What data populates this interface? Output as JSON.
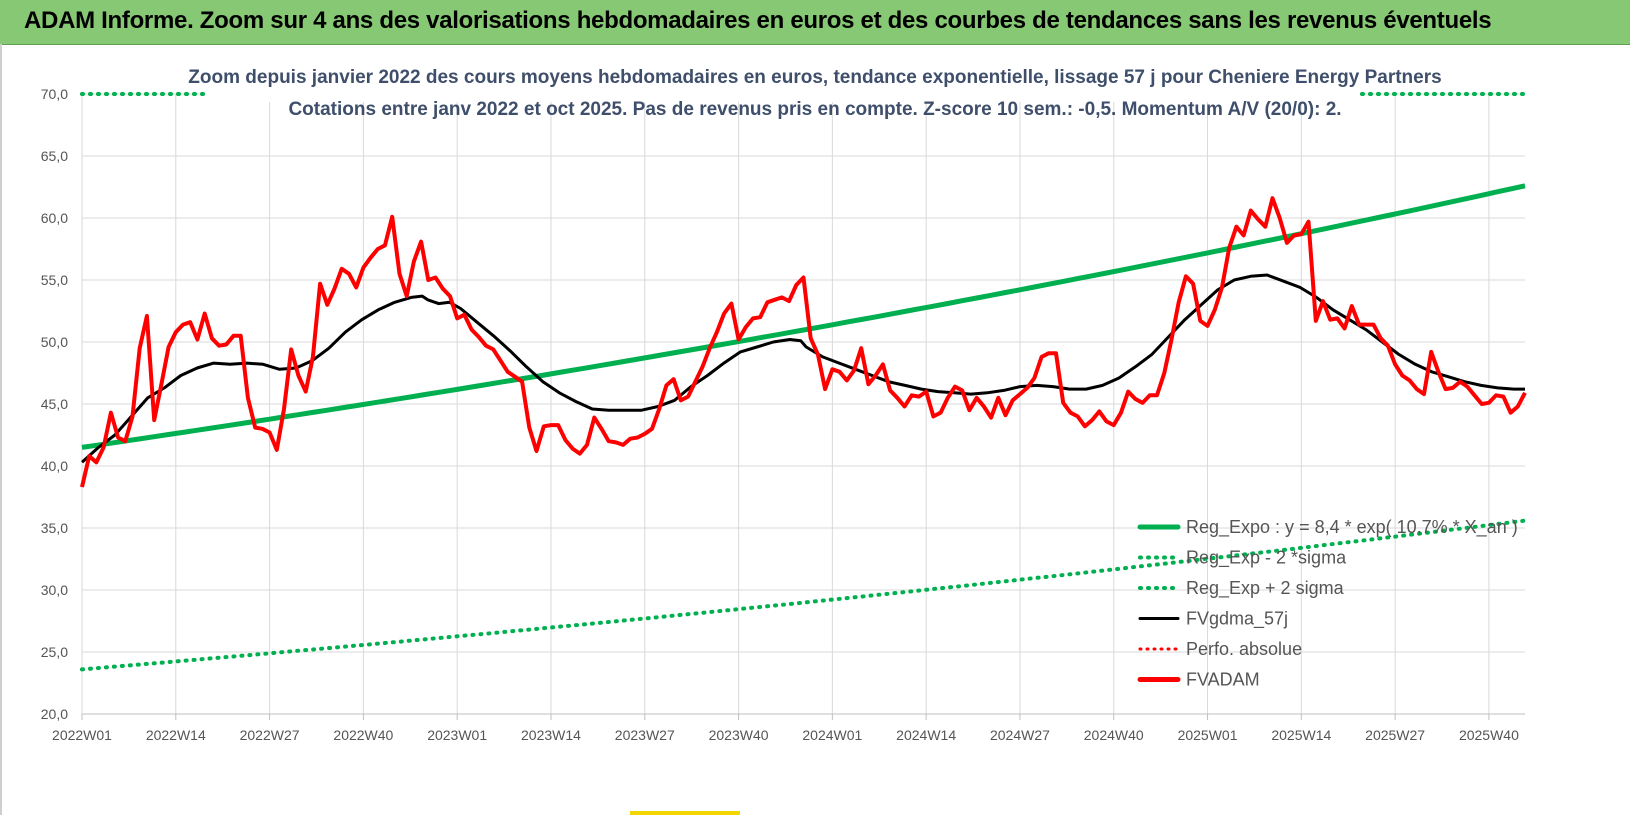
{
  "banner": {
    "title": "ADAM Informe. Zoom sur 4 ans des valorisations hebdomadaires en euros et des courbes de tendances sans les revenus éventuels"
  },
  "chart_data": {
    "type": "line",
    "title_line1": "Zoom depuis janvier 2022 des cours moyens hebdomadaires en euros, tendance exponentielle, lissage 57 j pour Cheniere Energy Partners",
    "title_line2": "Cotations entre janv 2022 et oct 2025. Pas de revenus pris en compte. Z-score 10 sem.: -0,5.  Momentum A/V (20/0): 2.",
    "ylim": [
      20,
      70
    ],
    "y_ticks": [
      "20,0",
      "25,0",
      "30,0",
      "35,0",
      "40,0",
      "45,0",
      "50,0",
      "55,0",
      "60,0",
      "65,0",
      "70,0"
    ],
    "x_ticks": [
      "2022W01",
      "2022W14",
      "2022W27",
      "2022W40",
      "2023W01",
      "2023W14",
      "2023W27",
      "2023W40",
      "2024W01",
      "2024W14",
      "2024W27",
      "2024W40",
      "2025W01",
      "2025W14",
      "2025W27",
      "2025W40"
    ],
    "n_weeks": 200,
    "legend": [
      {
        "name": "Reg_Expo : y = 8,4 * exp( 10,7% * X_an )",
        "style": "solid-green"
      },
      {
        "name": "Reg_Exp - 2 *sigma",
        "style": "dotted-green"
      },
      {
        "name": "Reg_Exp + 2 sigma",
        "style": "dotted-green"
      },
      {
        "name": "FVgdma_57j",
        "style": "solid-black"
      },
      {
        "name": "Perfo. absolue",
        "style": "dotted-red"
      },
      {
        "name": "FVADAM",
        "style": "solid-red"
      }
    ],
    "colors": {
      "expo": "#00b050",
      "sigma": "#00b050",
      "gdma": "#000000",
      "perfo": "#ff0000",
      "adam": "#ff0000",
      "grid": "#d9d9d9"
    },
    "series": [
      {
        "name": "Reg_Expo",
        "start": 41.5,
        "end": 62.6
      },
      {
        "name": "Reg_Exp - 2 *sigma",
        "start": 23.6,
        "end": 35.6
      },
      {
        "name": "Reg_Exp + 2 sigma",
        "start": 70.0,
        "end": 70.0
      },
      {
        "name": "FVgdma_57j",
        "points": [
          [
            0,
            40.3
          ],
          [
            3,
            41.5
          ],
          [
            6,
            42.5
          ],
          [
            9,
            44.0
          ],
          [
            12,
            45.5
          ],
          [
            15,
            46.3
          ],
          [
            18,
            47.3
          ],
          [
            21,
            47.9
          ],
          [
            24,
            48.3
          ],
          [
            27,
            48.2
          ],
          [
            30,
            48.3
          ],
          [
            33,
            48.2
          ],
          [
            36,
            47.8
          ],
          [
            39,
            47.9
          ],
          [
            42,
            48.5
          ],
          [
            45,
            49.5
          ],
          [
            48,
            50.8
          ],
          [
            51,
            51.8
          ],
          [
            54,
            52.6
          ],
          [
            57,
            53.2
          ],
          [
            60,
            53.6
          ],
          [
            62,
            53.7
          ],
          [
            63,
            53.4
          ],
          [
            65,
            53.1
          ],
          [
            67,
            53.2
          ],
          [
            69,
            52.7
          ],
          [
            72,
            51.6
          ],
          [
            75,
            50.5
          ],
          [
            78,
            49.3
          ],
          [
            81,
            48.0
          ],
          [
            84,
            46.8
          ],
          [
            87,
            45.9
          ],
          [
            90,
            45.2
          ],
          [
            93,
            44.6
          ],
          [
            96,
            44.5
          ],
          [
            99,
            44.5
          ],
          [
            102,
            44.5
          ],
          [
            105,
            44.8
          ],
          [
            108,
            45.3
          ],
          [
            111,
            46.4
          ],
          [
            114,
            47.3
          ],
          [
            117,
            48.3
          ],
          [
            120,
            49.2
          ],
          [
            123,
            49.6
          ],
          [
            126,
            50.0
          ],
          [
            129,
            50.2
          ],
          [
            131,
            50.1
          ],
          [
            132,
            49.6
          ],
          [
            135,
            48.8
          ],
          [
            138,
            48.3
          ],
          [
            141,
            47.8
          ],
          [
            144,
            47.3
          ],
          [
            147,
            46.8
          ],
          [
            150,
            46.5
          ],
          [
            153,
            46.2
          ],
          [
            156,
            46.0
          ],
          [
            159,
            45.9
          ],
          [
            162,
            45.8
          ],
          [
            165,
            45.9
          ],
          [
            168,
            46.1
          ],
          [
            171,
            46.4
          ],
          [
            174,
            46.5
          ],
          [
            177,
            46.4
          ],
          [
            180,
            46.2
          ],
          [
            183,
            46.2
          ],
          [
            186,
            46.5
          ],
          [
            189,
            47.1
          ],
          [
            192,
            48.0
          ],
          [
            195,
            49.0
          ],
          [
            198,
            50.4
          ],
          [
            201,
            51.8
          ],
          [
            204,
            53.0
          ],
          [
            207,
            54.2
          ],
          [
            210,
            55.0
          ],
          [
            213,
            55.3
          ],
          [
            216,
            55.4
          ],
          [
            219,
            54.9
          ],
          [
            222,
            54.4
          ],
          [
            225,
            53.6
          ],
          [
            228,
            52.6
          ],
          [
            231,
            51.8
          ],
          [
            234,
            51.0
          ],
          [
            237,
            50.0
          ],
          [
            240,
            49.0
          ],
          [
            243,
            48.2
          ],
          [
            246,
            47.6
          ],
          [
            249,
            47.2
          ],
          [
            252,
            46.8
          ],
          [
            255,
            46.5
          ],
          [
            258,
            46.3
          ],
          [
            261,
            46.2
          ],
          [
            263,
            46.2
          ]
        ]
      },
      {
        "name": "FVADAM",
        "points": [
          [
            0,
            38.3
          ],
          [
            1,
            40.8
          ],
          [
            2,
            40.3
          ],
          [
            3,
            41.5
          ],
          [
            4,
            44.3
          ],
          [
            5,
            42.3
          ],
          [
            6,
            42.0
          ],
          [
            7,
            44.0
          ],
          [
            8,
            49.5
          ],
          [
            9,
            52.1
          ],
          [
            10,
            43.7
          ],
          [
            11,
            46.6
          ],
          [
            12,
            49.6
          ],
          [
            13,
            50.8
          ],
          [
            14,
            51.4
          ],
          [
            15,
            51.6
          ],
          [
            16,
            50.2
          ],
          [
            17,
            52.3
          ],
          [
            18,
            50.3
          ],
          [
            19,
            49.7
          ],
          [
            20,
            49.8
          ],
          [
            21,
            50.5
          ],
          [
            22,
            50.5
          ],
          [
            23,
            45.5
          ],
          [
            24,
            43.1
          ],
          [
            25,
            43.0
          ],
          [
            26,
            42.7
          ],
          [
            27,
            41.3
          ],
          [
            28,
            44.6
          ],
          [
            29,
            49.4
          ],
          [
            30,
            47.3
          ],
          [
            31,
            46.0
          ],
          [
            32,
            48.8
          ],
          [
            33,
            54.7
          ],
          [
            34,
            53.0
          ],
          [
            35,
            54.3
          ],
          [
            36,
            55.9
          ],
          [
            37,
            55.5
          ],
          [
            38,
            54.4
          ],
          [
            39,
            56.0
          ],
          [
            40,
            56.8
          ],
          [
            41,
            57.5
          ],
          [
            42,
            57.8
          ],
          [
            43,
            60.1
          ],
          [
            44,
            55.5
          ],
          [
            45,
            53.7
          ],
          [
            46,
            56.5
          ],
          [
            47,
            58.1
          ],
          [
            48,
            55.0
          ],
          [
            49,
            55.2
          ],
          [
            50,
            54.3
          ],
          [
            51,
            53.7
          ],
          [
            52,
            51.9
          ],
          [
            53,
            52.2
          ],
          [
            54,
            51.0
          ],
          [
            55,
            50.4
          ],
          [
            56,
            49.7
          ],
          [
            57,
            49.4
          ],
          [
            58,
            48.5
          ],
          [
            59,
            47.6
          ],
          [
            60,
            47.2
          ],
          [
            61,
            46.8
          ],
          [
            62,
            43.1
          ],
          [
            63,
            41.2
          ],
          [
            64,
            43.2
          ],
          [
            65,
            43.3
          ],
          [
            66,
            43.3
          ],
          [
            67,
            42.1
          ],
          [
            68,
            41.4
          ],
          [
            69,
            41.0
          ],
          [
            70,
            41.7
          ],
          [
            71,
            43.9
          ],
          [
            72,
            43.0
          ],
          [
            73,
            42.0
          ],
          [
            74,
            41.9
          ],
          [
            75,
            41.7
          ],
          [
            76,
            42.2
          ],
          [
            77,
            42.3
          ],
          [
            78,
            42.6
          ],
          [
            79,
            43.0
          ],
          [
            80,
            44.6
          ],
          [
            81,
            46.5
          ],
          [
            82,
            47.0
          ],
          [
            83,
            45.3
          ],
          [
            84,
            45.6
          ],
          [
            85,
            46.8
          ],
          [
            86,
            48.0
          ],
          [
            87,
            49.5
          ],
          [
            88,
            50.8
          ],
          [
            89,
            52.3
          ],
          [
            90,
            53.1
          ],
          [
            91,
            50.2
          ],
          [
            92,
            51.2
          ],
          [
            93,
            51.9
          ],
          [
            94,
            52.0
          ],
          [
            95,
            53.2
          ],
          [
            96,
            53.4
          ],
          [
            97,
            53.6
          ],
          [
            98,
            53.3
          ],
          [
            99,
            54.6
          ],
          [
            100,
            55.2
          ],
          [
            101,
            50.3
          ],
          [
            102,
            49.0
          ],
          [
            103,
            46.2
          ],
          [
            104,
            47.8
          ],
          [
            105,
            47.6
          ],
          [
            106,
            46.9
          ],
          [
            107,
            47.7
          ],
          [
            108,
            49.5
          ],
          [
            109,
            46.6
          ],
          [
            110,
            47.3
          ],
          [
            111,
            48.2
          ],
          [
            112,
            46.1
          ],
          [
            113,
            45.5
          ],
          [
            114,
            44.8
          ],
          [
            115,
            45.7
          ],
          [
            116,
            45.6
          ],
          [
            117,
            46.0
          ],
          [
            118,
            44.0
          ],
          [
            119,
            44.3
          ],
          [
            120,
            45.5
          ],
          [
            121,
            46.4
          ],
          [
            122,
            46.1
          ],
          [
            123,
            44.5
          ],
          [
            124,
            45.5
          ],
          [
            125,
            44.8
          ],
          [
            126,
            43.9
          ],
          [
            127,
            45.5
          ],
          [
            128,
            44.1
          ],
          [
            129,
            45.3
          ],
          [
            130,
            45.8
          ],
          [
            131,
            46.3
          ],
          [
            132,
            47.1
          ],
          [
            133,
            48.8
          ],
          [
            134,
            49.1
          ],
          [
            135,
            49.1
          ],
          [
            136,
            45.1
          ],
          [
            137,
            44.3
          ],
          [
            138,
            44.0
          ],
          [
            139,
            43.2
          ],
          [
            140,
            43.7
          ],
          [
            141,
            44.4
          ],
          [
            142,
            43.6
          ],
          [
            143,
            43.3
          ],
          [
            144,
            44.3
          ],
          [
            145,
            46.0
          ],
          [
            146,
            45.4
          ],
          [
            147,
            45.1
          ],
          [
            148,
            45.7
          ],
          [
            149,
            45.7
          ],
          [
            150,
            47.5
          ],
          [
            151,
            50.2
          ],
          [
            152,
            53.2
          ],
          [
            153,
            55.3
          ],
          [
            154,
            54.7
          ],
          [
            155,
            51.7
          ],
          [
            156,
            51.3
          ],
          [
            157,
            52.6
          ],
          [
            158,
            54.4
          ],
          [
            159,
            57.6
          ],
          [
            160,
            59.3
          ],
          [
            161,
            58.6
          ],
          [
            162,
            60.6
          ],
          [
            163,
            59.9
          ],
          [
            164,
            59.3
          ],
          [
            165,
            61.6
          ],
          [
            166,
            60.0
          ],
          [
            167,
            58.0
          ],
          [
            168,
            58.6
          ],
          [
            169,
            58.7
          ],
          [
            170,
            59.7
          ],
          [
            171,
            51.7
          ],
          [
            172,
            53.3
          ],
          [
            173,
            51.8
          ],
          [
            174,
            51.9
          ],
          [
            175,
            51.1
          ],
          [
            176,
            52.9
          ],
          [
            177,
            51.4
          ],
          [
            178,
            51.4
          ],
          [
            179,
            51.4
          ],
          [
            180,
            50.3
          ],
          [
            181,
            49.7
          ],
          [
            182,
            48.2
          ],
          [
            183,
            47.3
          ],
          [
            184,
            46.9
          ],
          [
            185,
            46.2
          ],
          [
            186,
            45.8
          ],
          [
            187,
            49.2
          ],
          [
            188,
            47.6
          ],
          [
            189,
            46.2
          ],
          [
            190,
            46.3
          ],
          [
            191,
            46.8
          ],
          [
            192,
            46.4
          ],
          [
            193,
            45.7
          ],
          [
            194,
            45.0
          ],
          [
            195,
            45.1
          ],
          [
            196,
            45.7
          ],
          [
            197,
            45.6
          ],
          [
            198,
            44.3
          ],
          [
            199,
            44.8
          ],
          [
            200,
            45.9
          ]
        ]
      }
    ]
  }
}
